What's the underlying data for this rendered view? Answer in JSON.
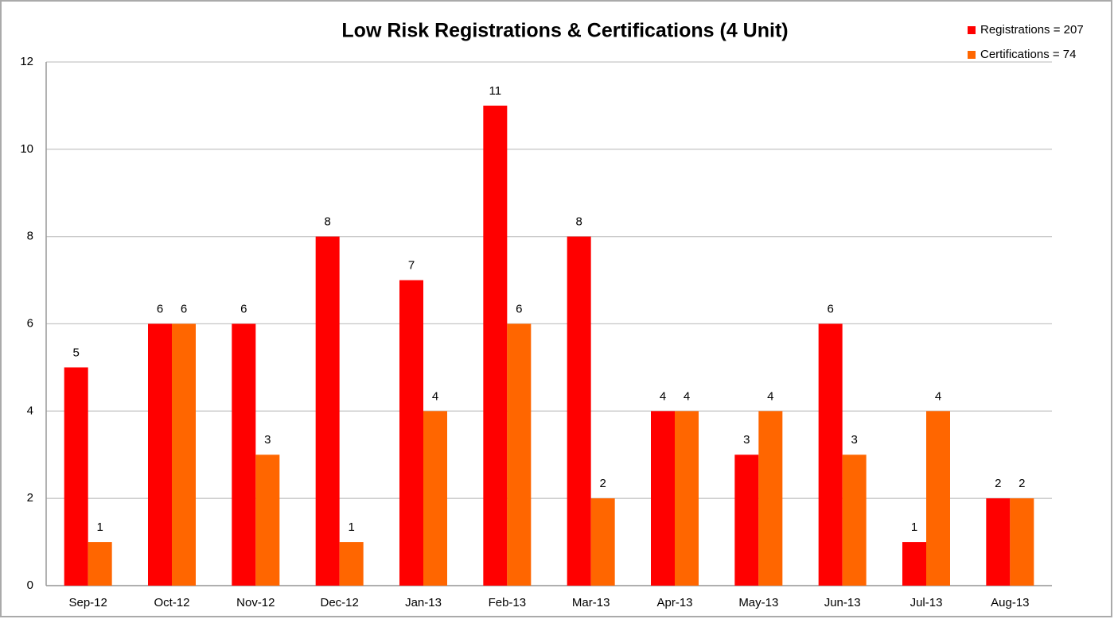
{
  "chart_data": {
    "type": "bar",
    "title": "Low Risk Registrations & Certifications (4 Unit)",
    "categories": [
      "Sep-12",
      "Oct-12",
      "Nov-12",
      "Dec-12",
      "Jan-13",
      "Feb-13",
      "Mar-13",
      "Apr-13",
      "May-13",
      "Jun-13",
      "Jul-13",
      "Aug-13"
    ],
    "series": [
      {
        "name": "Registrations = 207",
        "color": "#ff0000",
        "values": [
          5,
          6,
          6,
          8,
          7,
          11,
          8,
          4,
          3,
          6,
          1,
          2
        ]
      },
      {
        "name": "Certifications = 74",
        "color": "#ff6600",
        "values": [
          1,
          6,
          3,
          1,
          4,
          6,
          2,
          4,
          4,
          3,
          4,
          2
        ]
      }
    ],
    "ylim": [
      0,
      12
    ],
    "yticks": [
      0,
      2,
      4,
      6,
      8,
      10,
      12
    ],
    "grid": true,
    "legend": "top-right"
  }
}
